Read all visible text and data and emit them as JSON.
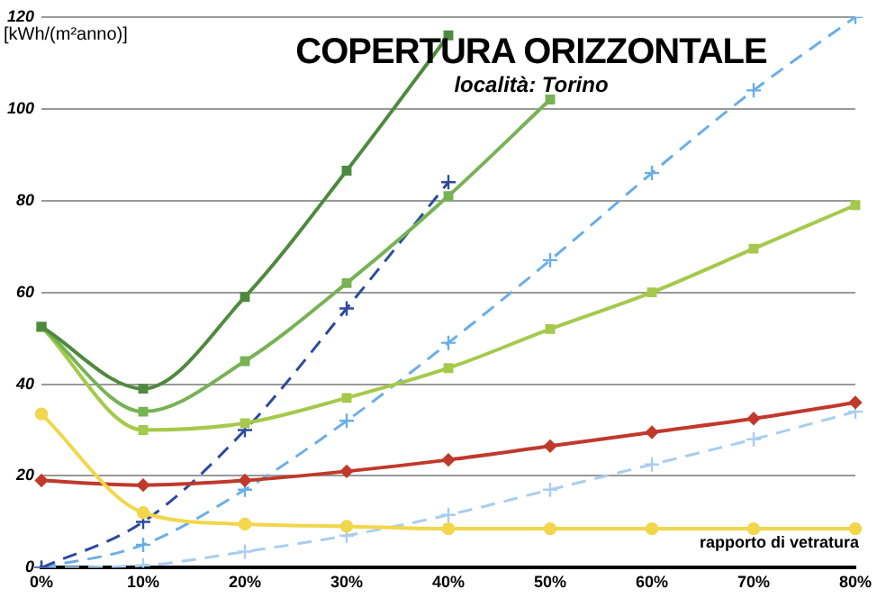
{
  "chart_data": {
    "type": "line",
    "title": "COPERTURA ORIZZONTALE",
    "subtitle": "località: Torino",
    "ylabel": "[kWh/(m²anno)]",
    "xlabel": "rapporto di vetratura",
    "categories": [
      "0%",
      "10%",
      "20%",
      "30%",
      "40%",
      "50%",
      "60%",
      "70%",
      "80%"
    ],
    "ylim": [
      0,
      120
    ],
    "yticks": [
      0,
      20,
      40,
      60,
      80,
      100,
      120
    ],
    "grid": "y",
    "legend": false,
    "series": [
      {
        "color": "#4e8a3e",
        "marker": "square",
        "line_style": "solid",
        "values": [
          52.5,
          39,
          59,
          86.5,
          116,
          null,
          null,
          null,
          null
        ]
      },
      {
        "color": "#77b255",
        "marker": "square",
        "line_style": "solid",
        "values": [
          52.5,
          34,
          45,
          62,
          81,
          102,
          null,
          null,
          null
        ]
      },
      {
        "color": "#a5c94a",
        "marker": "square",
        "line_style": "solid",
        "values": [
          52.5,
          30,
          31.5,
          37,
          43.5,
          52,
          60,
          69.5,
          79
        ]
      },
      {
        "color": "#f2d64b",
        "marker": "circle",
        "line_style": "solid",
        "values": [
          33.5,
          12,
          9.5,
          9,
          8.5,
          8.5,
          8.5,
          8.5,
          8.5
        ]
      },
      {
        "color": "#c0392b",
        "marker": "diamond",
        "line_style": "solid",
        "values": [
          19,
          18,
          19,
          21,
          23.5,
          26.5,
          29.5,
          32.5,
          36
        ]
      },
      {
        "color": "#2e4a9e",
        "marker": "cross",
        "line_style": "dashed",
        "values": [
          0,
          10,
          30,
          56.5,
          84,
          null,
          null,
          null,
          null
        ]
      },
      {
        "color": "#6aaee8",
        "marker": "cross",
        "line_style": "dashed",
        "values": [
          0,
          5,
          17,
          32,
          49,
          67,
          86,
          104,
          120
        ]
      },
      {
        "color": "#a9cdef",
        "marker": "cross",
        "line_style": "dashed",
        "values": [
          0,
          0.5,
          3.5,
          7,
          11.5,
          17,
          22.5,
          28,
          34
        ]
      }
    ]
  }
}
